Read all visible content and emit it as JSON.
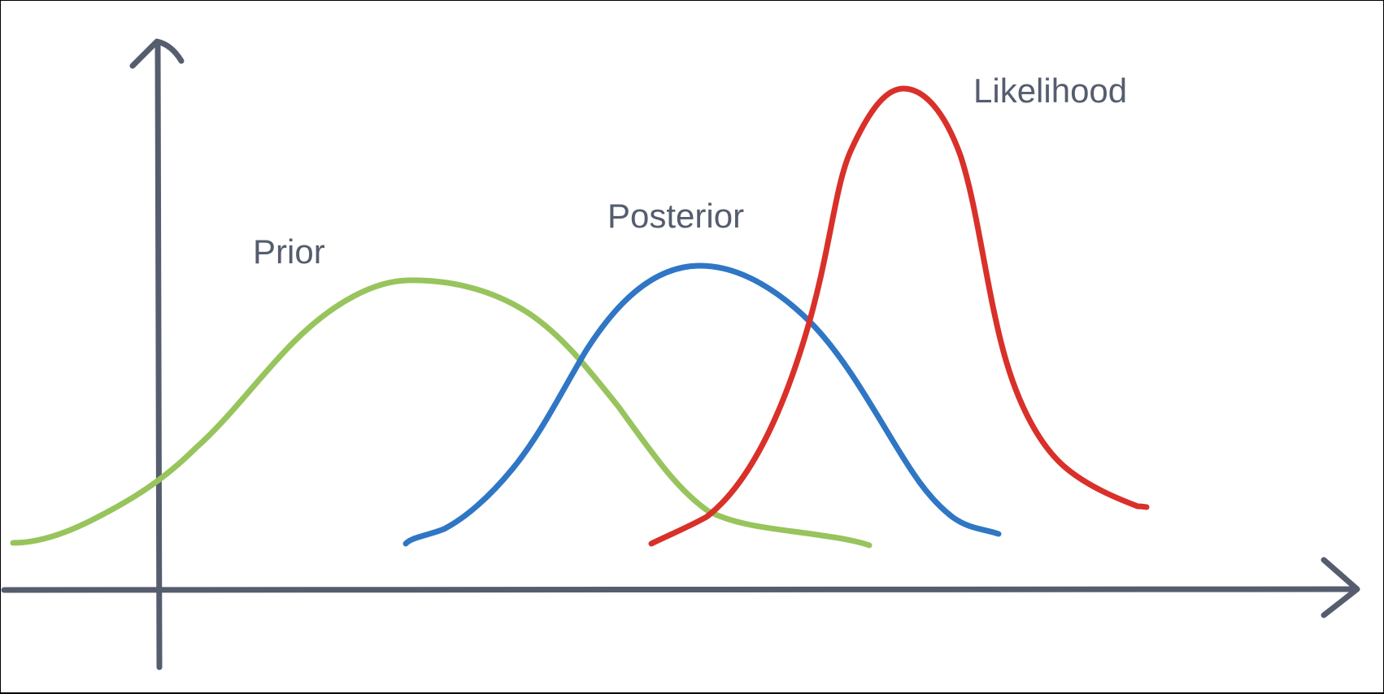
{
  "colors": {
    "background": "#ffffff",
    "frame": "#000000",
    "axis": "#555d6e",
    "label_text": "#555d6e",
    "prior": "#97c45c",
    "posterior": "#2f76c5",
    "likelihood": "#d9302a"
  },
  "labels": {
    "prior": "Prior",
    "posterior": "Posterior",
    "likelihood": "Likelihood"
  }
}
